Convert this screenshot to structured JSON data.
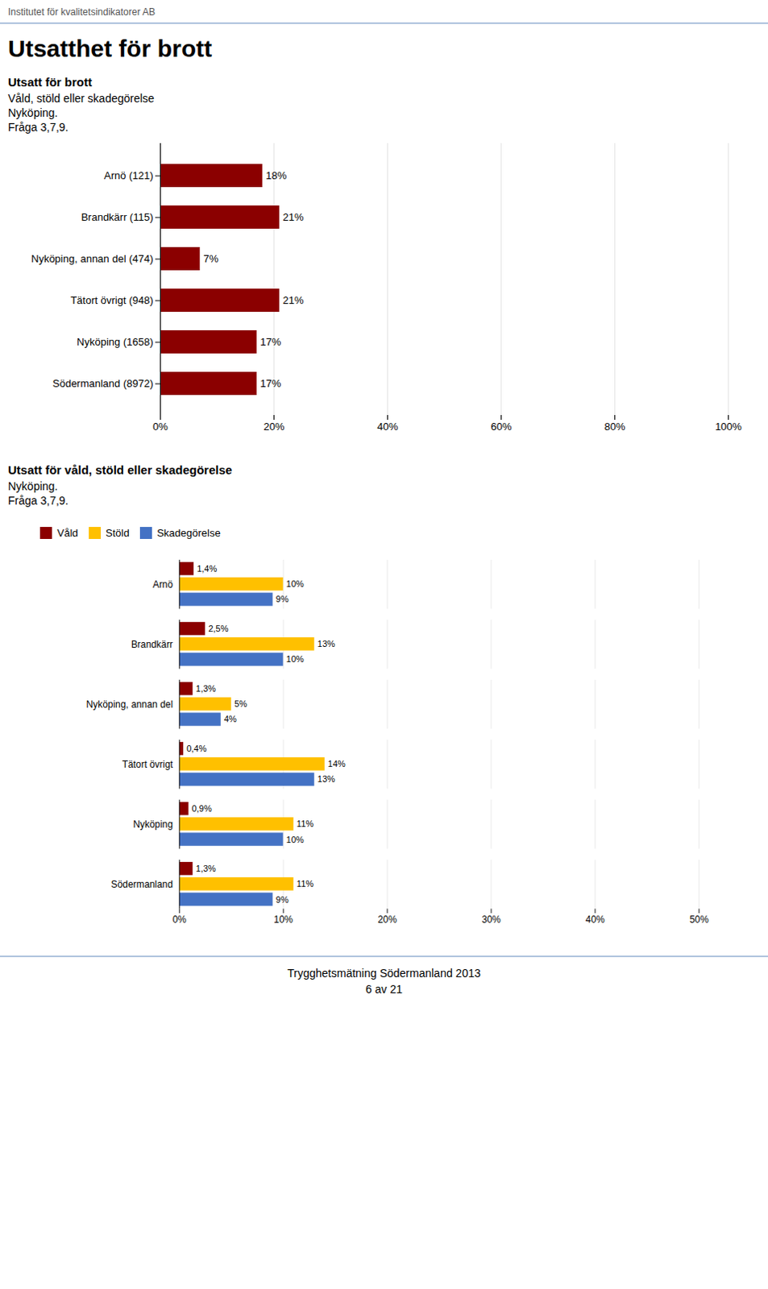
{
  "title": "Utsatthet för brott",
  "annotations": [
    "Institutet för kvalitetsindikatorer AB",
    "Trygghetsmätning Södermanland 2013",
    "6 av 21"
  ],
  "chart_data": [
    {
      "type": "bar",
      "orientation": "horizontal",
      "title": "Utsatt för brott",
      "subtitle": [
        "Våld, stöld eller skadegörelse",
        "Nyköping.",
        "Fråga 3,7,9."
      ],
      "categories": [
        "Arnö (121)",
        "Brandkärr (115)",
        "Nyköping, annan del (474)",
        "Tätort övrigt (948)",
        "Nyköping (1658)",
        "Södermanland (8972)"
      ],
      "values": [
        18,
        21,
        7,
        21,
        17,
        17
      ],
      "value_labels": [
        "18%",
        "21%",
        "7%",
        "21%",
        "17%",
        "17%"
      ],
      "color": "#8B0000",
      "xlim": [
        0,
        100
      ],
      "xticks": [
        {
          "value": 0,
          "label": "0%"
        },
        {
          "value": 20,
          "label": "20%"
        },
        {
          "value": 40,
          "label": "40%"
        },
        {
          "value": 60,
          "label": "60%"
        },
        {
          "value": 80,
          "label": "80%"
        },
        {
          "value": 100,
          "label": "100%"
        }
      ],
      "grid": true,
      "data_labels": true
    },
    {
      "type": "bar",
      "orientation": "horizontal",
      "title": "Utsatt för våld, stöld eller skadegörelse",
      "subtitle": [
        "Nyköping.",
        "Fråga 3,7,9."
      ],
      "categories": [
        "Arnö",
        "Brandkärr",
        "Nyköping, annan del",
        "Tätort övrigt",
        "Nyköping",
        "Södermanland"
      ],
      "series": [
        {
          "name": "Våld",
          "color": "#8B0000",
          "values": [
            1.4,
            2.5,
            1.3,
            0.4,
            0.9,
            1.3
          ],
          "value_labels": [
            "1,4%",
            "2,5%",
            "1,3%",
            "0,4%",
            "0,9%",
            "1,3%"
          ]
        },
        {
          "name": "Stöld",
          "color": "#FFC000",
          "values": [
            10,
            13,
            5,
            14,
            11,
            11
          ],
          "value_labels": [
            "10%",
            "13%",
            "5%",
            "14%",
            "11%",
            "11%"
          ]
        },
        {
          "name": "Skadegörelse",
          "color": "#4472C4",
          "values": [
            9,
            10,
            4,
            13,
            10,
            9
          ],
          "value_labels": [
            "9%",
            "10%",
            "4%",
            "13%",
            "10%",
            "9%"
          ]
        }
      ],
      "xlim": [
        0,
        50
      ],
      "xticks": [
        {
          "value": 0,
          "label": "0%"
        },
        {
          "value": 10,
          "label": "10%"
        },
        {
          "value": 20,
          "label": "20%"
        },
        {
          "value": 30,
          "label": "30%"
        },
        {
          "value": 40,
          "label": "40%"
        },
        {
          "value": 50,
          "label": "50%"
        }
      ],
      "grid": true,
      "legend": "top",
      "data_labels": true
    }
  ]
}
